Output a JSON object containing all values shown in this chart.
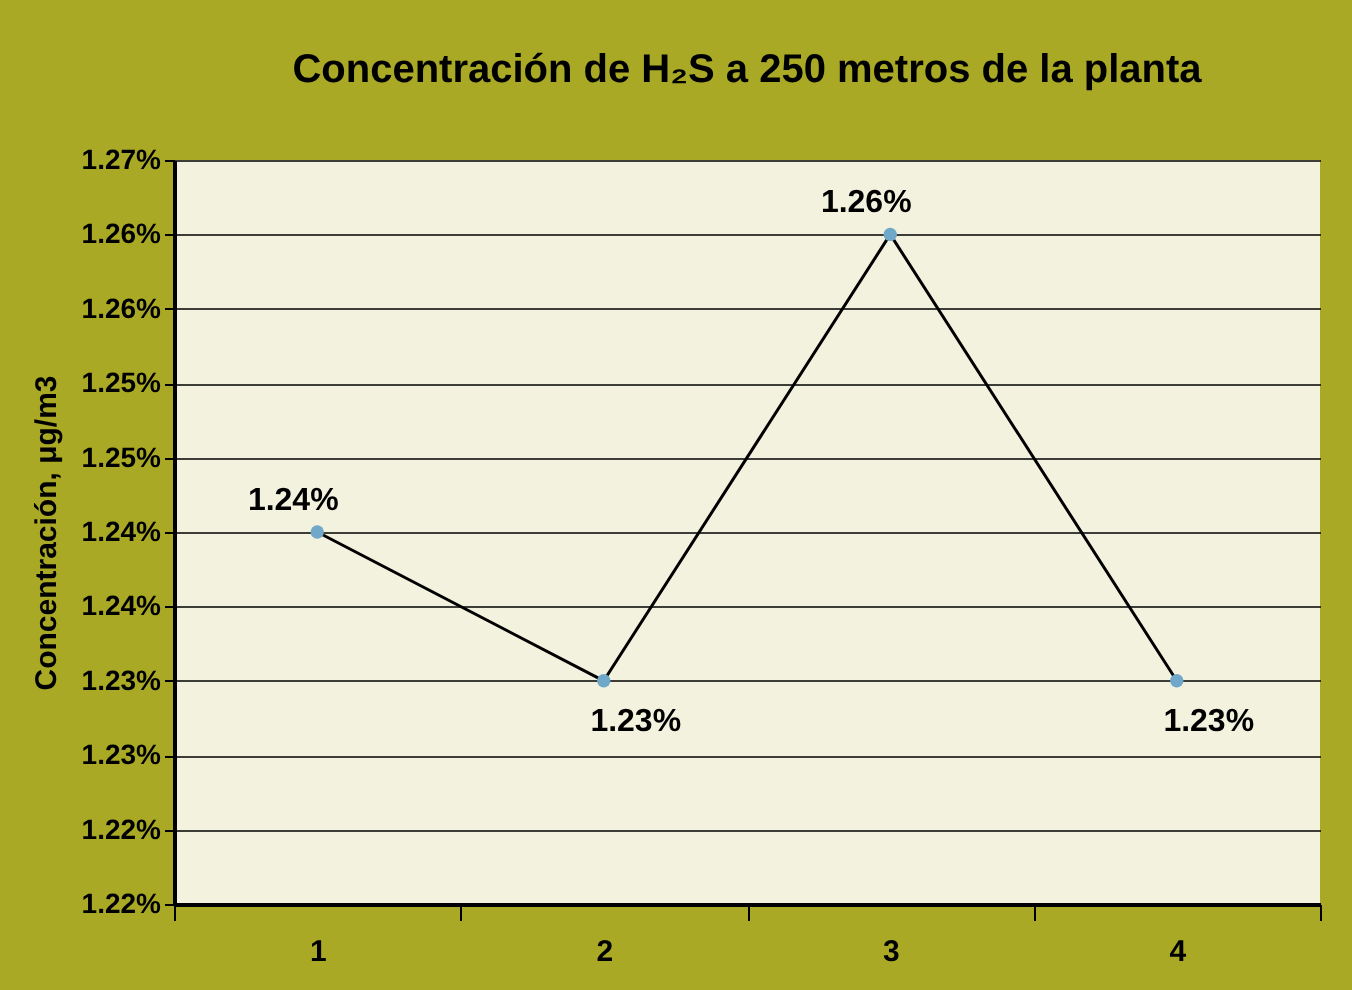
{
  "chart_data": {
    "type": "line",
    "title": "Concentración de H₂S a 250 metros de la planta",
    "ylabel": "Concentración, μg/m3",
    "categories": [
      "1",
      "2",
      "3",
      "4"
    ],
    "series": [
      {
        "color": "#000000",
        "values": [
          1.245,
          1.235,
          1.265,
          1.235
        ],
        "value_labels": [
          "1.24%",
          "1.23%",
          "1.26%",
          "1.23%"
        ]
      }
    ],
    "ylim": [
      1.22,
      1.27
    ],
    "yticks": [
      {
        "value": 1.22,
        "label": "1.22%"
      },
      {
        "value": 1.225,
        "label": "1.22%"
      },
      {
        "value": 1.23,
        "label": "1.23%"
      },
      {
        "value": 1.235,
        "label": "1.23%"
      },
      {
        "value": 1.24,
        "label": "1.24%"
      },
      {
        "value": 1.245,
        "label": "1.24%"
      },
      {
        "value": 1.25,
        "label": "1.25%"
      },
      {
        "value": 1.255,
        "label": "1.25%"
      },
      {
        "value": 1.26,
        "label": "1.26%"
      },
      {
        "value": 1.265,
        "label": "1.26%"
      },
      {
        "value": 1.27,
        "label": "1.27%"
      }
    ],
    "grid": "y",
    "marker": "circle",
    "line_style": "solid"
  }
}
